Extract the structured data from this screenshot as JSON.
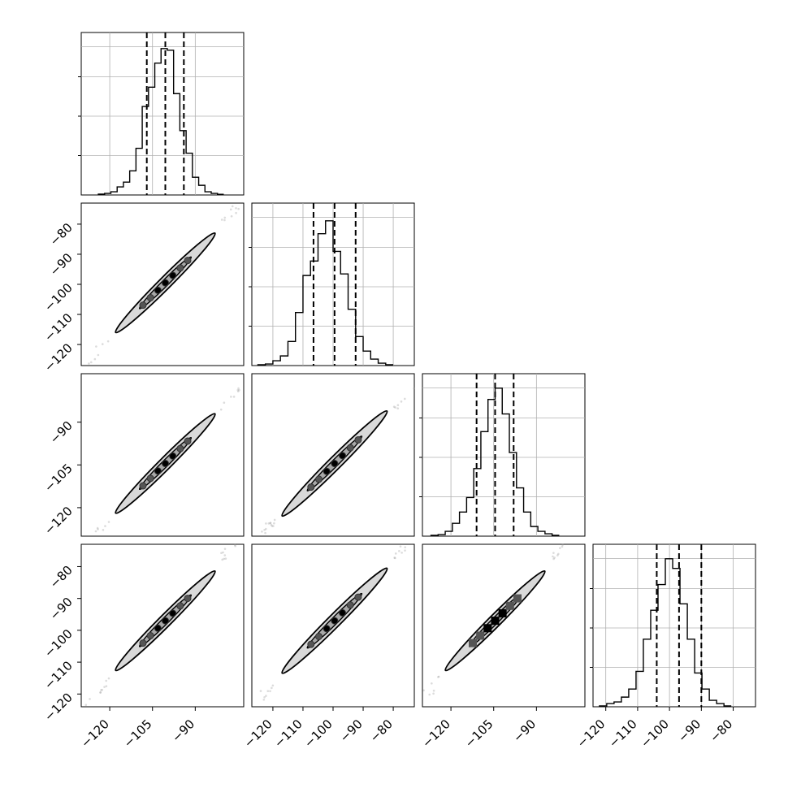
{
  "chart_data": {
    "type": "corner",
    "title": "",
    "num_parameters": 4,
    "grid": true,
    "colors": {
      "line": "#000000",
      "grid": "#b0b0b0",
      "fill_inner": "#5a5a5a",
      "fill_outer": "#d9d9d9"
    },
    "axes_ranges": [
      [
        -130,
        -73
      ],
      [
        -127,
        -73
      ],
      [
        -130,
        -73
      ],
      [
        -124,
        -73
      ]
    ],
    "x_tick_labels": [
      [
        "−120",
        "−105",
        "−90"
      ],
      [
        "−120",
        "−110",
        "−100",
        "−90",
        "−80"
      ],
      [
        "−120",
        "−105",
        "−90"
      ],
      [
        "−120",
        "−110",
        "−100",
        "−90",
        "−80"
      ]
    ],
    "y_tick_labels": [
      [],
      [
        "−80",
        "−90",
        "−100",
        "−110",
        "−120"
      ],
      [
        "−90",
        "−105",
        "−120"
      ],
      [
        "−80",
        "−90",
        "−100",
        "−110",
        "−120"
      ]
    ],
    "histograms": [
      {
        "param": 0,
        "quantiles": [
          -107,
          -100.5,
          -94
        ],
        "bins_start": -124,
        "bin_width": 2.2,
        "counts": [
          0.005,
          0.01,
          0.02,
          0.05,
          0.08,
          0.15,
          0.29,
          0.55,
          0.67,
          0.82,
          0.91,
          0.9,
          0.63,
          0.4,
          0.26,
          0.11,
          0.06,
          0.02,
          0.01,
          0.004
        ]
      },
      {
        "param": 1,
        "quantiles": [
          -106.5,
          -99.5,
          -92.5
        ],
        "bins_start": -125,
        "bin_width": 2.5,
        "counts": [
          0.005,
          0.01,
          0.03,
          0.06,
          0.15,
          0.33,
          0.56,
          0.65,
          0.82,
          0.9,
          0.71,
          0.57,
          0.35,
          0.18,
          0.09,
          0.04,
          0.015,
          0.005
        ]
      },
      {
        "param": 2,
        "quantiles": [
          -111,
          -104.5,
          -98
        ],
        "bins_start": -127,
        "bin_width": 2.5,
        "counts": [
          0.005,
          0.01,
          0.03,
          0.08,
          0.15,
          0.24,
          0.42,
          0.65,
          0.85,
          0.92,
          0.76,
          0.52,
          0.3,
          0.15,
          0.06,
          0.03,
          0.015,
          0.005
        ]
      },
      {
        "param": 3,
        "quantiles": [
          -104,
          -97,
          -90
        ],
        "bins_start": -122,
        "bin_width": 2.3,
        "counts": [
          0.005,
          0.02,
          0.03,
          0.06,
          0.11,
          0.22,
          0.42,
          0.6,
          0.76,
          0.92,
          0.86,
          0.64,
          0.42,
          0.21,
          0.11,
          0.04,
          0.02,
          0.005
        ]
      }
    ],
    "scatter_2d": [
      {
        "row": 1,
        "col": 0,
        "mean": [
          -100.5,
          -99.5
        ],
        "sd": [
          8.5,
          8.5
        ],
        "rho": 0.995,
        "dots": 7
      },
      {
        "row": 2,
        "col": 0,
        "mean": [
          -100.5,
          -104.5
        ],
        "sd": [
          8.5,
          8.5
        ],
        "rho": 0.995,
        "dots": 7
      },
      {
        "row": 2,
        "col": 1,
        "mean": [
          -99.5,
          -104.5
        ],
        "sd": [
          8.5,
          8.5
        ],
        "rho": 0.995,
        "dots": 7
      },
      {
        "row": 3,
        "col": 0,
        "mean": [
          -100.5,
          -97
        ],
        "sd": [
          8.5,
          8.5
        ],
        "rho": 0.995,
        "dots": 7
      },
      {
        "row": 3,
        "col": 1,
        "mean": [
          -99.5,
          -97
        ],
        "sd": [
          8.5,
          8.5
        ],
        "rho": 0.995,
        "dots": 7
      },
      {
        "row": 3,
        "col": 2,
        "mean": [
          -104.5,
          -97
        ],
        "sd": [
          8.5,
          8.5
        ],
        "rho": 0.995,
        "squares": 7
      }
    ]
  }
}
